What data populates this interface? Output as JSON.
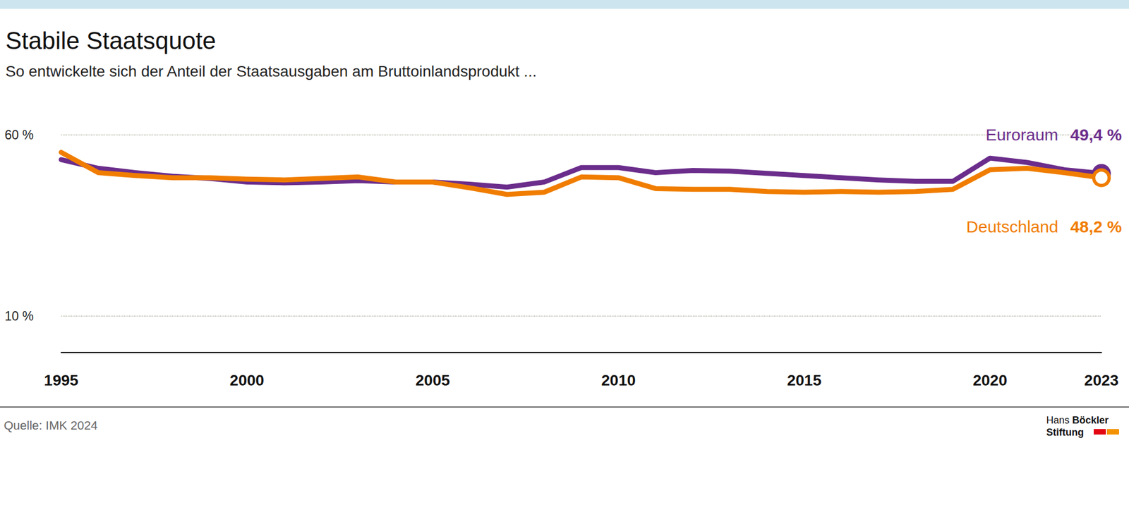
{
  "chart_data": {
    "type": "line",
    "title": "Stabile Staatsquote",
    "subtitle": "So entwickelte sich der Anteil der Staatsausgaben am Bruttoinlandsprodukt ...",
    "x": [
      1995,
      1996,
      1997,
      1998,
      1999,
      2000,
      2001,
      2002,
      2003,
      2004,
      2005,
      2006,
      2007,
      2008,
      2009,
      2010,
      2011,
      2012,
      2013,
      2014,
      2015,
      2016,
      2017,
      2018,
      2019,
      2020,
      2021,
      2022,
      2023
    ],
    "xlim": [
      1995,
      2023
    ],
    "xticks": [
      1995,
      2000,
      2005,
      2010,
      2015,
      2020,
      2023
    ],
    "ylim": [
      0,
      60
    ],
    "yticks": [
      {
        "value": 10,
        "label": "10 %"
      },
      {
        "value": 60,
        "label": "60 %"
      }
    ],
    "grid": true,
    "series": [
      {
        "name": "Euroraum",
        "color": "#6b2d8b",
        "marker": "circle",
        "values": [
          53.2,
          50.8,
          49.6,
          48.6,
          48.0,
          47.0,
          46.8,
          47.0,
          47.4,
          47.0,
          47.0,
          46.4,
          45.6,
          47.0,
          51.0,
          51.0,
          49.6,
          50.2,
          50.0,
          49.4,
          48.8,
          48.2,
          47.6,
          47.2,
          47.2,
          53.6,
          52.4,
          50.4,
          49.4
        ],
        "value_labels": [
          null,
          null,
          null,
          null,
          null,
          null,
          null,
          null,
          null,
          null,
          null,
          null,
          null,
          null,
          null,
          null,
          null,
          null,
          null,
          null,
          null,
          null,
          null,
          null,
          null,
          null,
          null,
          null,
          "49,4 %"
        ]
      },
      {
        "name": "Deutschland",
        "color": "#f07d00",
        "marker": "ring",
        "values": [
          55.2,
          49.6,
          48.8,
          48.2,
          48.2,
          47.8,
          47.6,
          48.0,
          48.4,
          47.0,
          47.0,
          45.4,
          43.6,
          44.2,
          48.4,
          48.2,
          45.2,
          45.0,
          45.0,
          44.4,
          44.2,
          44.4,
          44.2,
          44.4,
          45.0,
          50.4,
          50.8,
          49.6,
          48.2
        ],
        "value_labels": [
          null,
          null,
          null,
          null,
          null,
          null,
          null,
          null,
          null,
          null,
          null,
          null,
          null,
          null,
          null,
          null,
          null,
          null,
          null,
          null,
          null,
          null,
          null,
          null,
          null,
          null,
          null,
          null,
          "48,2 %"
        ]
      }
    ],
    "source": "Quelle: IMK 2024",
    "branding": [
      "Hans",
      "Böckler",
      "Stiftung"
    ]
  }
}
